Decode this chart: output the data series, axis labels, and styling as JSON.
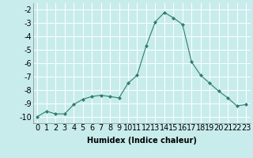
{
  "x": [
    0,
    1,
    2,
    3,
    4,
    5,
    6,
    7,
    8,
    9,
    10,
    11,
    12,
    13,
    14,
    15,
    16,
    17,
    18,
    19,
    20,
    21,
    22,
    23
  ],
  "y": [
    -10.0,
    -9.6,
    -9.8,
    -9.8,
    -9.1,
    -8.7,
    -8.5,
    -8.4,
    -8.5,
    -8.6,
    -7.5,
    -6.9,
    -4.7,
    -2.9,
    -2.2,
    -2.6,
    -3.1,
    -5.9,
    -6.9,
    -7.5,
    -8.1,
    -8.6,
    -9.2,
    -9.1
  ],
  "line_color": "#2e7d6e",
  "marker": "D",
  "marker_size": 2,
  "bg_color": "#c8ecec",
  "grid_color": "#ffffff",
  "xlabel": "Humidex (Indice chaleur)",
  "ylim": [
    -10.5,
    -1.5
  ],
  "xlim": [
    -0.5,
    23.5
  ],
  "yticks": [
    -10,
    -9,
    -8,
    -7,
    -6,
    -5,
    -4,
    -3,
    -2
  ],
  "xtick_labels": [
    "0",
    "1",
    "2",
    "3",
    "4",
    "5",
    "6",
    "7",
    "8",
    "9",
    "10",
    "11",
    "12",
    "13",
    "14",
    "15",
    "16",
    "17",
    "18",
    "19",
    "20",
    "21",
    "22",
    "23"
  ],
  "xlabel_fontsize": 7,
  "tick_fontsize": 7
}
